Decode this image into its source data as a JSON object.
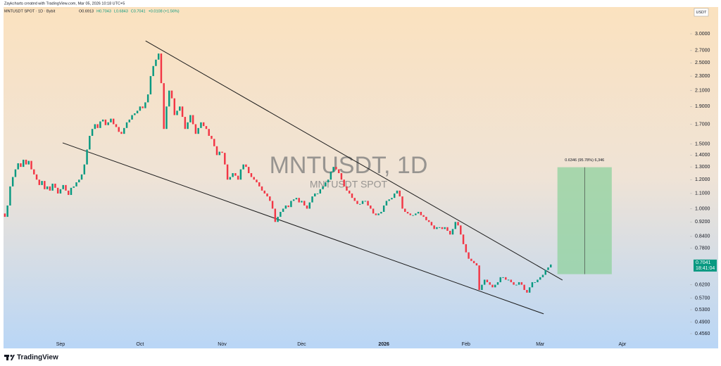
{
  "header": {
    "credit": "Zaykcharts created with TradingView.com, Mar 05, 2026 10:18 UTC+5",
    "symbol": "MNTUSDT SPOT · 1D · Bybit",
    "ohlc": [
      "O0.6913",
      "H0.7043",
      "L0.6843",
      "C0.7041",
      "+0.0108 (+1.56%)"
    ],
    "currency": "USDT"
  },
  "footer": {
    "brand": "TradingView"
  },
  "chart_data": {
    "type": "candlestick",
    "watermark": "MNTUSDT, 1D",
    "watermark_sub": "MNTUSDT SPOT",
    "up_color": "#089981",
    "down_color": "#f23645",
    "first_open": 0.97,
    "series": [
      {
        "name": "MNTUSDT",
        "values": [
          0.95,
          1.02,
          1.15,
          1.22,
          1.28,
          1.33,
          1.3,
          1.36,
          1.32,
          1.35,
          1.28,
          1.24,
          1.2,
          1.16,
          1.19,
          1.13,
          1.15,
          1.12,
          1.17,
          1.14,
          1.1,
          1.13,
          1.16,
          1.12,
          1.09,
          1.14,
          1.15,
          1.18,
          1.2,
          1.24,
          1.32,
          1.45,
          1.58,
          1.65,
          1.7,
          1.66,
          1.73,
          1.75,
          1.69,
          1.72,
          1.76,
          1.7,
          1.67,
          1.62,
          1.6,
          1.66,
          1.72,
          1.75,
          1.8,
          1.82,
          1.85,
          1.9,
          1.88,
          1.95,
          2.05,
          2.3,
          2.45,
          2.55,
          2.65,
          2.2,
          1.65,
          1.9,
          2.1,
          2.0,
          1.8,
          1.85,
          1.9,
          1.78,
          1.65,
          1.72,
          1.8,
          1.7,
          1.6,
          1.66,
          1.72,
          1.68,
          1.65,
          1.58,
          1.55,
          1.48,
          1.4,
          1.43,
          1.42,
          1.32,
          1.2,
          1.22,
          1.25,
          1.23,
          1.2,
          1.28,
          1.32,
          1.3,
          1.25,
          1.22,
          1.2,
          1.18,
          1.15,
          1.12,
          1.1,
          1.08,
          1.05,
          1.0,
          0.92,
          0.95,
          0.98,
          1.0,
          1.02,
          1.01,
          1.05,
          1.06,
          1.07,
          1.04,
          1.05,
          1.02,
          1.0,
          1.04,
          1.08,
          1.1,
          1.1,
          1.13,
          1.15,
          1.18,
          1.2,
          1.26,
          1.3,
          1.28,
          1.25,
          1.2,
          1.15,
          1.12,
          1.1,
          1.07,
          1.05,
          1.03,
          1.03,
          1.05,
          1.05,
          1.02,
          1.0,
          0.97,
          0.96,
          0.97,
          0.98,
          1.02,
          1.05,
          1.06,
          1.07,
          1.1,
          1.12,
          1.08,
          1.0,
          0.98,
          0.97,
          0.96,
          0.96,
          0.97,
          0.98,
          0.96,
          0.95,
          0.93,
          0.92,
          0.9,
          0.88,
          0.89,
          0.89,
          0.88,
          0.89,
          0.87,
          0.85,
          0.88,
          0.92,
          0.9,
          0.85,
          0.8,
          0.76,
          0.73,
          0.72,
          0.71,
          0.7,
          0.6,
          0.62,
          0.64,
          0.63,
          0.62,
          0.61,
          0.62,
          0.63,
          0.65,
          0.65,
          0.64,
          0.64,
          0.63,
          0.62,
          0.62,
          0.63,
          0.62,
          0.6,
          0.59,
          0.61,
          0.63,
          0.63,
          0.64,
          0.65,
          0.66,
          0.68,
          0.6913,
          0.7041
        ]
      }
    ],
    "log_scale": true,
    "grid": false,
    "xlim": [
      -0.5,
      257.2
    ],
    "xticks": [
      {
        "value": 21,
        "label": "Sep"
      },
      {
        "value": 51,
        "label": "Oct"
      },
      {
        "value": 82,
        "label": "Nov"
      },
      {
        "value": 112,
        "label": "Dec"
      },
      {
        "value": 143,
        "label": "2026"
      },
      {
        "value": 174,
        "label": "Feb"
      },
      {
        "value": 202,
        "label": "Mar"
      },
      {
        "value": 233,
        "label": "Apr"
      }
    ],
    "ylim": [
      0.4306,
      3.549
    ],
    "yticks": [
      {
        "value": 3,
        "label": "3.0000"
      },
      {
        "value": 2.7,
        "label": "2.7000"
      },
      {
        "value": 2.5,
        "label": "2.5000"
      },
      {
        "value": 2.3,
        "label": "2.3000"
      },
      {
        "value": 2.1,
        "label": "2.1000"
      },
      {
        "value": 1.9,
        "label": "1.9000"
      },
      {
        "value": 1.7,
        "label": "1.7000"
      },
      {
        "value": 1.5,
        "label": "1.5000"
      },
      {
        "value": 1.4,
        "label": "1.4000"
      },
      {
        "value": 1.3,
        "label": "1.3000"
      },
      {
        "value": 1.2,
        "label": "1.2000"
      },
      {
        "value": 1.1,
        "label": "1.1000"
      },
      {
        "value": 1,
        "label": "1.0000"
      },
      {
        "value": 0.92,
        "label": "0.9200"
      },
      {
        "value": 0.84,
        "label": "0.8400"
      },
      {
        "value": 0.78,
        "label": "0.7800"
      },
      {
        "value": 0.62,
        "label": "0.6200"
      },
      {
        "value": 0.57,
        "label": "0.5700"
      },
      {
        "value": 0.53,
        "label": "0.5300"
      },
      {
        "value": 0.49,
        "label": "0.4900"
      },
      {
        "value": 0.456,
        "label": "0.4560"
      }
    ],
    "price_tag": {
      "value": 0.7041,
      "countdown": "18:41:04"
    },
    "trendlines": [
      {
        "x": [
          53.1,
          210.4
        ],
        "y": [
          2.87,
          0.6385
        ]
      },
      {
        "x": [
          21.8,
          203.3
        ],
        "y": [
          1.512,
          0.5164
        ]
      }
    ],
    "measure": {
      "x": [
        208.5,
        229
      ],
      "y": [
        0.6626,
        1.2972
      ],
      "label": "0.6346 (95.78%) 6,346"
    }
  }
}
